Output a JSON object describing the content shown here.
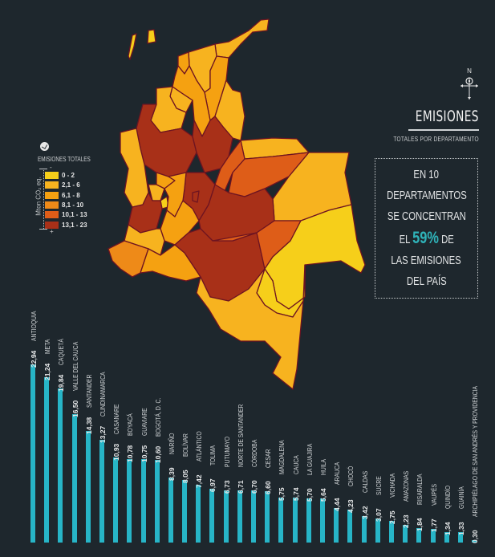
{
  "header": {
    "title": "EMISIONES",
    "subtitle": "TOTALES POR DEPARTAMENTO",
    "compass_label": "N"
  },
  "callout": {
    "lines": [
      "EN 10",
      "DEPARTAMENTOS",
      "SE CONCENTRAN"
    ],
    "pct_prefix": "EL",
    "pct": "59%",
    "pct_suffix": "DE",
    "lines_after": [
      "LAS EMISIONES",
      "DEL PAÍS"
    ]
  },
  "legend": {
    "title": "EMISIONES TOTALES",
    "unit": "Mton CO₂ eq.",
    "minus": "-",
    "plus": "+",
    "classes": [
      {
        "label": "0 - 2",
        "color": "#f6cf1a"
      },
      {
        "label": "2,1 - 6",
        "color": "#f7b31f"
      },
      {
        "label": "6,1 - 8",
        "color": "#f5a111"
      },
      {
        "label": "8,1 - 10",
        "color": "#ee8a18"
      },
      {
        "label": "10,1 - 13",
        "color": "#de5d18"
      },
      {
        "label": "13,1 - 23",
        "color": "#a83018"
      }
    ]
  },
  "colors": {
    "background": "#1e272d",
    "bar": "#27b5c7",
    "accent": "#2fb3b9",
    "border": "#6e1421"
  },
  "chart_data": {
    "type": "bar",
    "title": "EMISIONES TOTALES POR DEPARTAMENTO",
    "ylabel": "Mton CO2 eq.",
    "ylim": [
      0,
      23
    ],
    "categories": [
      "ANTIOQUIA",
      "META",
      "CAQUETÁ",
      "VALLE DEL CAUCA",
      "SANTANDER",
      "CUNDINAMARCA",
      "CASANARE",
      "BOYACÁ",
      "GUAVIARE",
      "BOGOTÁ, D. C.",
      "NARIÑO",
      "BOLÍVAR",
      "ATLÁNTICO",
      "TOLIMA",
      "PUTUMAYO",
      "NORTE DE SANTANDER",
      "CÓRDOBA",
      "CESAR",
      "MAGDALENA",
      "CAUCA",
      "LA GUAJIRA",
      "HUILA",
      "ARAUCA",
      "CHOCÓ",
      "CALDAS",
      "SUCRE",
      "VICHADA",
      "AMAZONAS",
      "RISARALDA",
      "VAUPÉS",
      "QUINDÍO",
      "GUAINÍA",
      "ARCHIPIÉLAGO DE SAN ANDRÉS Y PROVIDENCIA"
    ],
    "values": [
      22.94,
      21.24,
      19.84,
      16.5,
      14.38,
      13.27,
      10.93,
      10.78,
      10.75,
      10.6,
      8.39,
      8.05,
      7.42,
      6.97,
      6.73,
      6.71,
      6.7,
      6.6,
      5.75,
      5.74,
      5.7,
      5.64,
      4.44,
      4.23,
      3.42,
      3.07,
      2.75,
      2.23,
      1.84,
      1.77,
      1.34,
      1.33,
      0.3
    ],
    "value_labels": [
      "22,94",
      "21,24",
      "19,84",
      "16,50",
      "14,38",
      "13,27",
      "10,93",
      "10,78",
      "10,75",
      "10,60",
      "8,39",
      "8,05",
      "7,42",
      "6,97",
      "6,73",
      "6,71",
      "6,70",
      "6,60",
      "5,75",
      "5,74",
      "5,70",
      "5,64",
      "4,44",
      "4,23",
      "3,42",
      "3,07",
      "2,75",
      "2,23",
      "1,84",
      "1,77",
      "1,34",
      "1,33",
      "0,30"
    ]
  }
}
